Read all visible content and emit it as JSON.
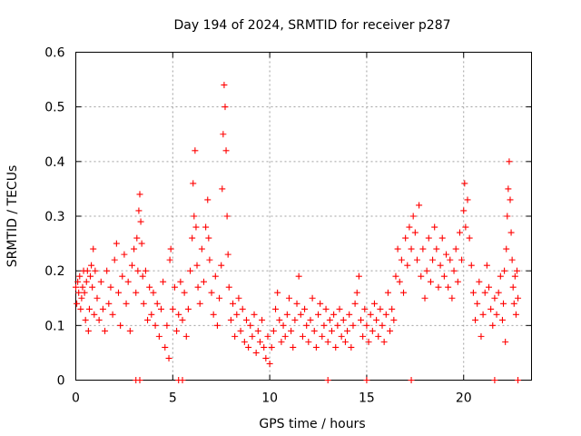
{
  "chart_data": {
    "type": "scatter",
    "title": "Day 194 of 2024, SRMTID for receiver p287",
    "xlabel": "GPS time / hours",
    "ylabel": "SRMTID / TECUs",
    "xlim": [
      0,
      23.5
    ],
    "ylim": [
      0,
      0.6
    ],
    "xticks": [
      0,
      5,
      10,
      15,
      20
    ],
    "yticks": [
      0,
      0.1,
      0.2,
      0.3,
      0.4,
      0.5,
      0.6
    ],
    "xtick_labels": [
      "0",
      "5",
      "10",
      "15",
      "20"
    ],
    "ytick_labels": [
      "0",
      "0.1",
      "0.2",
      "0.3",
      "0.4",
      "0.5",
      "0.6"
    ],
    "grid": true,
    "marker": "+",
    "series": [
      {
        "name": "SRMTID",
        "color": "#ff0000",
        "points": [
          [
            0.0,
            0.17
          ],
          [
            0.05,
            0.14
          ],
          [
            0.1,
            0.18
          ],
          [
            0.15,
            0.16
          ],
          [
            0.2,
            0.19
          ],
          [
            0.25,
            0.13
          ],
          [
            0.3,
            0.15
          ],
          [
            0.35,
            0.17
          ],
          [
            0.4,
            0.2
          ],
          [
            0.45,
            0.16
          ],
          [
            0.5,
            0.11
          ],
          [
            0.55,
            0.18
          ],
          [
            0.6,
            0.2
          ],
          [
            0.65,
            0.09
          ],
          [
            0.7,
            0.13
          ],
          [
            0.75,
            0.19
          ],
          [
            0.8,
            0.21
          ],
          [
            0.85,
            0.17
          ],
          [
            0.9,
            0.24
          ],
          [
            0.95,
            0.12
          ],
          [
            1.0,
            0.2
          ],
          [
            1.1,
            0.15
          ],
          [
            1.2,
            0.11
          ],
          [
            1.3,
            0.18
          ],
          [
            1.4,
            0.13
          ],
          [
            1.5,
            0.09
          ],
          [
            1.6,
            0.2
          ],
          [
            1.7,
            0.14
          ],
          [
            1.8,
            0.17
          ],
          [
            1.9,
            0.12
          ],
          [
            2.0,
            0.22
          ],
          [
            2.1,
            0.25
          ],
          [
            2.2,
            0.16
          ],
          [
            2.3,
            0.1
          ],
          [
            2.4,
            0.19
          ],
          [
            2.5,
            0.23
          ],
          [
            2.6,
            0.14
          ],
          [
            2.7,
            0.18
          ],
          [
            2.8,
            0.09
          ],
          [
            2.9,
            0.21
          ],
          [
            3.0,
            0.24
          ],
          [
            3.1,
            0.16
          ],
          [
            3.15,
            0.26
          ],
          [
            3.2,
            0.2
          ],
          [
            3.25,
            0.31
          ],
          [
            3.3,
            0.34
          ],
          [
            3.35,
            0.29
          ],
          [
            3.4,
            0.25
          ],
          [
            3.45,
            0.19
          ],
          [
            3.5,
            0.14
          ],
          [
            3.6,
            0.2
          ],
          [
            3.7,
            0.11
          ],
          [
            3.8,
            0.17
          ],
          [
            3.9,
            0.12
          ],
          [
            4.0,
            0.16
          ],
          [
            4.1,
            0.1
          ],
          [
            4.2,
            0.14
          ],
          [
            4.3,
            0.08
          ],
          [
            4.4,
            0.13
          ],
          [
            4.5,
            0.18
          ],
          [
            4.6,
            0.06
          ],
          [
            4.7,
            0.1
          ],
          [
            4.8,
            0.04
          ],
          [
            4.85,
            0.22
          ],
          [
            4.9,
            0.24
          ],
          [
            5.0,
            0.13
          ],
          [
            5.1,
            0.17
          ],
          [
            5.2,
            0.09
          ],
          [
            5.3,
            0.12
          ],
          [
            5.4,
            0.18
          ],
          [
            5.5,
            0.11
          ],
          [
            5.6,
            0.16
          ],
          [
            5.7,
            0.08
          ],
          [
            5.8,
            0.13
          ],
          [
            5.9,
            0.2
          ],
          [
            6.0,
            0.26
          ],
          [
            6.05,
            0.36
          ],
          [
            6.1,
            0.3
          ],
          [
            6.15,
            0.42
          ],
          [
            6.2,
            0.28
          ],
          [
            6.25,
            0.21
          ],
          [
            6.3,
            0.17
          ],
          [
            6.4,
            0.14
          ],
          [
            6.5,
            0.24
          ],
          [
            6.6,
            0.18
          ],
          [
            6.7,
            0.28
          ],
          [
            6.8,
            0.33
          ],
          [
            6.85,
            0.26
          ],
          [
            6.9,
            0.22
          ],
          [
            7.0,
            0.16
          ],
          [
            7.1,
            0.12
          ],
          [
            7.2,
            0.19
          ],
          [
            7.3,
            0.1
          ],
          [
            7.4,
            0.15
          ],
          [
            7.5,
            0.21
          ],
          [
            7.55,
            0.35
          ],
          [
            7.6,
            0.45
          ],
          [
            7.65,
            0.54
          ],
          [
            7.7,
            0.5
          ],
          [
            7.75,
            0.42
          ],
          [
            7.8,
            0.3
          ],
          [
            7.85,
            0.23
          ],
          [
            7.9,
            0.17
          ],
          [
            8.0,
            0.11
          ],
          [
            8.1,
            0.14
          ],
          [
            8.2,
            0.08
          ],
          [
            8.3,
            0.12
          ],
          [
            8.4,
            0.15
          ],
          [
            8.5,
            0.09
          ],
          [
            8.6,
            0.13
          ],
          [
            8.7,
            0.07
          ],
          [
            8.8,
            0.11
          ],
          [
            8.9,
            0.06
          ],
          [
            9.0,
            0.1
          ],
          [
            9.1,
            0.08
          ],
          [
            9.2,
            0.12
          ],
          [
            9.3,
            0.05
          ],
          [
            9.4,
            0.09
          ],
          [
            9.5,
            0.07
          ],
          [
            9.6,
            0.11
          ],
          [
            9.7,
            0.06
          ],
          [
            9.8,
            0.04
          ],
          [
            9.9,
            0.08
          ],
          [
            10.0,
            0.03
          ],
          [
            10.1,
            0.06
          ],
          [
            10.2,
            0.09
          ],
          [
            10.3,
            0.13
          ],
          [
            10.4,
            0.16
          ],
          [
            10.5,
            0.11
          ],
          [
            10.6,
            0.07
          ],
          [
            10.7,
            0.1
          ],
          [
            10.8,
            0.08
          ],
          [
            10.9,
            0.12
          ],
          [
            11.0,
            0.15
          ],
          [
            11.1,
            0.09
          ],
          [
            11.2,
            0.06
          ],
          [
            11.3,
            0.11
          ],
          [
            11.4,
            0.14
          ],
          [
            11.5,
            0.19
          ],
          [
            11.6,
            0.12
          ],
          [
            11.7,
            0.08
          ],
          [
            11.8,
            0.13
          ],
          [
            11.9,
            0.1
          ],
          [
            12.0,
            0.07
          ],
          [
            12.1,
            0.11
          ],
          [
            12.2,
            0.15
          ],
          [
            12.3,
            0.09
          ],
          [
            12.4,
            0.06
          ],
          [
            12.5,
            0.12
          ],
          [
            12.6,
            0.14
          ],
          [
            12.7,
            0.08
          ],
          [
            12.8,
            0.1
          ],
          [
            12.9,
            0.13
          ],
          [
            13.0,
            0.07
          ],
          [
            13.1,
            0.11
          ],
          [
            13.2,
            0.09
          ],
          [
            13.3,
            0.12
          ],
          [
            13.4,
            0.06
          ],
          [
            13.5,
            0.1
          ],
          [
            13.6,
            0.13
          ],
          [
            13.7,
            0.08
          ],
          [
            13.8,
            0.11
          ],
          [
            13.9,
            0.07
          ],
          [
            14.0,
            0.09
          ],
          [
            14.1,
            0.12
          ],
          [
            14.2,
            0.06
          ],
          [
            14.3,
            0.1
          ],
          [
            14.4,
            0.14
          ],
          [
            14.5,
            0.16
          ],
          [
            14.6,
            0.19
          ],
          [
            14.7,
            0.11
          ],
          [
            14.8,
            0.08
          ],
          [
            14.9,
            0.13
          ],
          [
            15.0,
            0.1
          ],
          [
            15.1,
            0.07
          ],
          [
            15.2,
            0.12
          ],
          [
            15.3,
            0.09
          ],
          [
            15.4,
            0.14
          ],
          [
            15.5,
            0.11
          ],
          [
            15.6,
            0.08
          ],
          [
            15.7,
            0.13
          ],
          [
            15.8,
            0.1
          ],
          [
            15.9,
            0.07
          ],
          [
            16.0,
            0.12
          ],
          [
            16.1,
            0.16
          ],
          [
            16.2,
            0.09
          ],
          [
            16.3,
            0.13
          ],
          [
            16.4,
            0.11
          ],
          [
            16.5,
            0.19
          ],
          [
            16.6,
            0.24
          ],
          [
            16.7,
            0.18
          ],
          [
            16.8,
            0.22
          ],
          [
            16.9,
            0.16
          ],
          [
            17.0,
            0.26
          ],
          [
            17.1,
            0.21
          ],
          [
            17.2,
            0.28
          ],
          [
            17.3,
            0.24
          ],
          [
            17.4,
            0.3
          ],
          [
            17.5,
            0.27
          ],
          [
            17.6,
            0.22
          ],
          [
            17.7,
            0.32
          ],
          [
            17.8,
            0.19
          ],
          [
            17.9,
            0.24
          ],
          [
            18.0,
            0.15
          ],
          [
            18.1,
            0.2
          ],
          [
            18.2,
            0.26
          ],
          [
            18.3,
            0.18
          ],
          [
            18.4,
            0.22
          ],
          [
            18.5,
            0.28
          ],
          [
            18.6,
            0.24
          ],
          [
            18.7,
            0.17
          ],
          [
            18.8,
            0.21
          ],
          [
            18.9,
            0.26
          ],
          [
            19.0,
            0.19
          ],
          [
            19.1,
            0.23
          ],
          [
            19.2,
            0.17
          ],
          [
            19.3,
            0.22
          ],
          [
            19.4,
            0.15
          ],
          [
            19.5,
            0.2
          ],
          [
            19.6,
            0.24
          ],
          [
            19.7,
            0.18
          ],
          [
            19.8,
            0.27
          ],
          [
            19.9,
            0.22
          ],
          [
            20.0,
            0.31
          ],
          [
            20.05,
            0.36
          ],
          [
            20.1,
            0.28
          ],
          [
            20.2,
            0.33
          ],
          [
            20.3,
            0.26
          ],
          [
            20.4,
            0.21
          ],
          [
            20.5,
            0.16
          ],
          [
            20.6,
            0.11
          ],
          [
            20.7,
            0.14
          ],
          [
            20.8,
            0.18
          ],
          [
            20.9,
            0.08
          ],
          [
            21.0,
            0.12
          ],
          [
            21.1,
            0.16
          ],
          [
            21.2,
            0.21
          ],
          [
            21.3,
            0.17
          ],
          [
            21.4,
            0.13
          ],
          [
            21.5,
            0.1
          ],
          [
            21.6,
            0.15
          ],
          [
            21.7,
            0.12
          ],
          [
            21.8,
            0.16
          ],
          [
            21.9,
            0.19
          ],
          [
            22.0,
            0.11
          ],
          [
            22.05,
            0.14
          ],
          [
            22.1,
            0.2
          ],
          [
            22.15,
            0.07
          ],
          [
            22.2,
            0.24
          ],
          [
            22.25,
            0.3
          ],
          [
            22.3,
            0.35
          ],
          [
            22.35,
            0.4
          ],
          [
            22.4,
            0.33
          ],
          [
            22.45,
            0.27
          ],
          [
            22.5,
            0.22
          ],
          [
            22.55,
            0.17
          ],
          [
            22.6,
            0.14
          ],
          [
            22.65,
            0.19
          ],
          [
            22.7,
            0.12
          ],
          [
            22.75,
            0.2
          ],
          [
            22.8,
            0.15
          ]
        ]
      }
    ],
    "zero_markers_x": [
      3.1,
      3.3,
      5.3,
      5.5,
      13.0,
      15.0,
      17.3,
      21.6,
      22.8
    ]
  }
}
